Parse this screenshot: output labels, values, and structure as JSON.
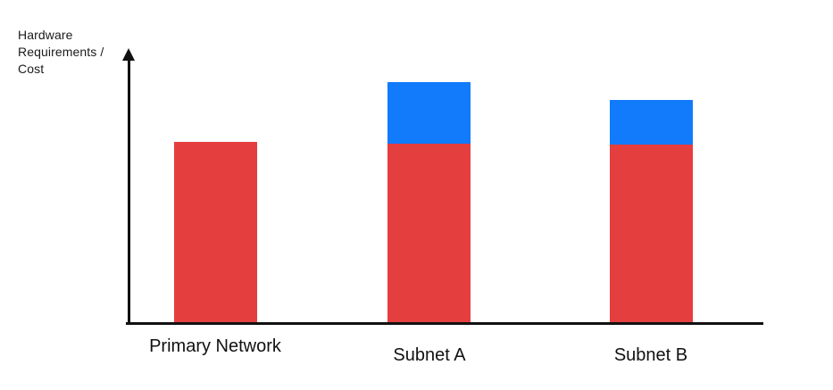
{
  "axis": {
    "y_label": "Hardware\nRequirements /\nCost"
  },
  "chart_data": {
    "type": "bar",
    "stacked": true,
    "title": "",
    "xlabel": "",
    "ylabel": "Hardware Requirements / Cost",
    "categories": [
      "Primary Network",
      "Subnet A",
      "Subnet B"
    ],
    "series": [
      {
        "name": "red-base-segment",
        "color": "#e53e3e",
        "values": [
          205,
          203,
          202
        ]
      },
      {
        "name": "blue-top-segment",
        "color": "#117bfb",
        "values": [
          0,
          69,
          50
        ]
      }
    ],
    "value_units": "relative bar height in px (no numeric scale shown on axis)",
    "axis_numeric_labels": false,
    "grid": false,
    "legend_position": "none"
  },
  "colors": {
    "axis": "#111111",
    "text": "#1a1a1a",
    "background": "#ffffff"
  }
}
